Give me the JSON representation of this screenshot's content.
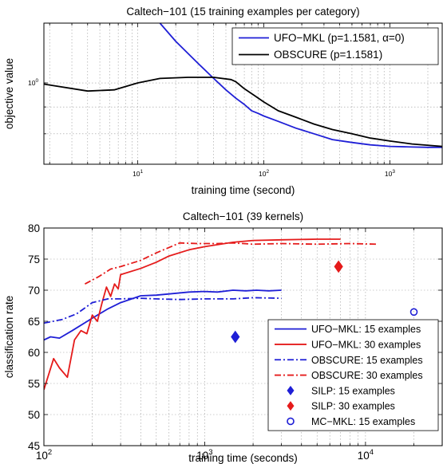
{
  "colors": {
    "ufo": "#1f1fd6",
    "obscure15": "#1f1fd6",
    "obscure": "#000000",
    "ufo30": "#e51b1b",
    "mcmkl": "#1f1fd6"
  },
  "chart_data": [
    {
      "type": "line",
      "title": "Caltech−101 (15 training examples per category)",
      "xlabel": "training time (second)",
      "ylabel": "objective value",
      "xscale": "log",
      "yscale": "log",
      "xlim": [
        1.8,
        2600
      ],
      "ylim": [
        0.7,
        1.3
      ],
      "xticks": [
        {
          "v": 10,
          "base": "10",
          "exp": "1"
        },
        {
          "v": 100,
          "base": "10",
          "exp": "2"
        },
        {
          "v": 1000,
          "base": "10",
          "exp": "3"
        }
      ],
      "yticks": [
        {
          "v": 1.0,
          "base": "10",
          "exp": "0"
        }
      ],
      "grid": true,
      "legend": "top-right",
      "series": [
        {
          "name": "UFO−MKL (p=1.1581, α=0)",
          "color": "#1f1fd6",
          "dash": "solid",
          "x": [
            15,
            20,
            30,
            40,
            50,
            60,
            70,
            80,
            90,
            100,
            130,
            180,
            250,
            350,
            500,
            700,
            1000,
            1500,
            2000,
            2600
          ],
          "y": [
            1.3,
            1.2,
            1.09,
            1.02,
            0.97,
            0.935,
            0.91,
            0.885,
            0.875,
            0.865,
            0.845,
            0.82,
            0.8,
            0.78,
            0.77,
            0.762,
            0.757,
            0.755,
            0.754,
            0.754
          ]
        },
        {
          "name": "OBSCURE (p=1.1581)",
          "color": "#000000",
          "dash": "solid",
          "x": [
            1.8,
            4,
            6.5,
            10,
            15,
            25,
            40,
            55,
            60,
            70,
            85,
            100,
            130,
            180,
            250,
            350,
            500,
            700,
            1000,
            1500,
            2600
          ],
          "y": [
            0.995,
            0.965,
            0.97,
            1.0,
            1.02,
            1.025,
            1.025,
            1.015,
            1.005,
            0.975,
            0.945,
            0.92,
            0.885,
            0.86,
            0.835,
            0.815,
            0.8,
            0.785,
            0.775,
            0.765,
            0.757
          ]
        }
      ]
    },
    {
      "type": "line",
      "title": "Caltech−101 (39 kernels)",
      "xlabel": "training time (seconds)",
      "ylabel": "classification rate",
      "xscale": "log",
      "xlim": [
        100,
        30000
      ],
      "ylim": [
        45,
        80
      ],
      "xticks": [
        {
          "v": 100,
          "base": "10",
          "exp": "2"
        },
        {
          "v": 1000,
          "base": "10",
          "exp": "3"
        },
        {
          "v": 10000,
          "base": "10",
          "exp": "4"
        }
      ],
      "yticks": [
        45,
        50,
        55,
        60,
        65,
        70,
        75,
        80
      ],
      "grid": true,
      "legend": "bottom-right",
      "series": [
        {
          "name": "UFO−MKL: 15 examples",
          "color": "#1f1fd6",
          "dash": "solid",
          "marker": "none",
          "x": [
            100,
            110,
            125,
            150,
            200,
            250,
            300,
            400,
            500,
            600,
            800,
            1000,
            1200,
            1500,
            1800,
            2100,
            2500,
            3000
          ],
          "y": [
            62.0,
            62.5,
            62.3,
            63.5,
            65.5,
            67.0,
            68.0,
            69.1,
            69.2,
            69.4,
            69.7,
            69.8,
            69.7,
            70.0,
            69.9,
            70.0,
            69.9,
            70.0
          ]
        },
        {
          "name": "UFO−MKL: 30 examples",
          "color": "#e51b1b",
          "dash": "solid",
          "marker": "none",
          "x": [
            100,
            115,
            125,
            140,
            155,
            170,
            185,
            200,
            215,
            230,
            245,
            260,
            275,
            290,
            300,
            400,
            500,
            600,
            800,
            1000,
            1500,
            2000,
            3000,
            5000,
            7000
          ],
          "y": [
            54.0,
            59.0,
            57.5,
            56.0,
            62.0,
            63.5,
            63.0,
            66.0,
            65.0,
            68.0,
            70.5,
            69.0,
            71.0,
            70.2,
            72.5,
            73.5,
            74.5,
            75.5,
            76.5,
            77.0,
            77.7,
            78.0,
            78.1,
            78.2,
            78.2
          ]
        },
        {
          "name": "OBSCURE: 15 examples",
          "color": "#1f1fd6",
          "dash": "dashdot",
          "marker": "none",
          "x": [
            100,
            130,
            160,
            200,
            250,
            300,
            400,
            500,
            700,
            1000,
            1500,
            2000,
            3000
          ],
          "y": [
            64.7,
            65.3,
            66.2,
            68.0,
            68.6,
            68.6,
            68.7,
            68.6,
            68.5,
            68.6,
            68.6,
            68.8,
            68.7
          ]
        },
        {
          "name": "OBSCURE: 30 examples",
          "color": "#e51b1b",
          "dash": "dashdot",
          "marker": "none",
          "x": [
            180,
            220,
            260,
            300,
            400,
            500,
            700,
            900,
            1200,
            1500,
            2000,
            3000,
            5000,
            8000,
            12000
          ],
          "y": [
            71.0,
            72.2,
            73.4,
            73.8,
            74.8,
            76.0,
            77.6,
            77.5,
            77.5,
            77.6,
            77.4,
            77.5,
            77.4,
            77.5,
            77.4
          ]
        },
        {
          "name": "SILP: 15 examples",
          "color": "#1f1fd6",
          "dash": "none",
          "marker": "diamond",
          "x": [
            1550
          ],
          "y": [
            62.5
          ]
        },
        {
          "name": "SILP: 30 examples",
          "color": "#e51b1b",
          "dash": "none",
          "marker": "diamond",
          "x": [
            6800
          ],
          "y": [
            73.8
          ]
        },
        {
          "name": "MC−MKL: 15 examples",
          "color": "#1f1fd6",
          "dash": "none",
          "marker": "circle",
          "x": [
            20000
          ],
          "y": [
            66.5
          ]
        }
      ]
    }
  ]
}
